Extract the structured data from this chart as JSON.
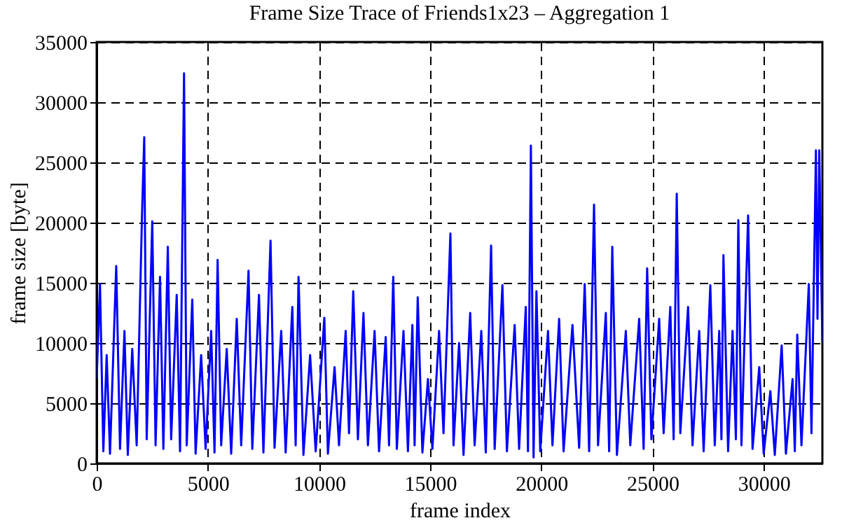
{
  "chart_data": {
    "type": "line",
    "title": "Frame Size Trace of Friends1x23 – Aggregation 1",
    "xlabel": "frame index",
    "ylabel": "frame size [byte]",
    "xlim": [
      0,
      32640
    ],
    "ylim": [
      0,
      35000
    ],
    "xticks": [
      0,
      5000,
      10000,
      15000,
      20000,
      25000,
      30000
    ],
    "yticks": [
      0,
      5000,
      10000,
      15000,
      20000,
      25000,
      30000,
      35000
    ],
    "grid": true,
    "line_style": "solid",
    "series": [
      {
        "color": "#0000ff",
        "x": [
          0,
          150,
          300,
          450,
          600,
          880,
          1050,
          1250,
          1400,
          1600,
          1800,
          2040,
          2140,
          2250,
          2500,
          2650,
          2850,
          3000,
          3200,
          3350,
          3600,
          3750,
          3930,
          4050,
          4300,
          4450,
          4700,
          4900,
          5150,
          5300,
          5440,
          5600,
          5850,
          6050,
          6300,
          6500,
          6830,
          7000,
          7300,
          7500,
          7820,
          8000,
          8300,
          8500,
          8800,
          8950,
          9080,
          9300,
          9600,
          9850,
          10240,
          10400,
          10700,
          10900,
          11200,
          11350,
          11540,
          11750,
          12000,
          12200,
          12500,
          12700,
          13000,
          13150,
          13340,
          13500,
          13800,
          14000,
          14200,
          14300,
          14440,
          14650,
          14900,
          15100,
          15400,
          15600,
          15910,
          16050,
          16300,
          16500,
          16800,
          17000,
          17300,
          17500,
          17740,
          17900,
          18250,
          18450,
          18800,
          19000,
          19300,
          19400,
          19530,
          19650,
          19780,
          19950,
          20300,
          20500,
          20800,
          21000,
          21400,
          21700,
          21950,
          22150,
          22370,
          22550,
          22900,
          23050,
          23190,
          23400,
          23800,
          24000,
          24400,
          24600,
          24760,
          24950,
          25300,
          25500,
          25800,
          25950,
          26090,
          26250,
          26600,
          26800,
          27100,
          27300,
          27600,
          27800,
          28000,
          28100,
          28190,
          28400,
          28600,
          28750,
          28860,
          29000,
          29300,
          29500,
          29800,
          30000,
          30300,
          30500,
          30810,
          31000,
          31300,
          31400,
          31510,
          31700,
          32030,
          32150,
          32350,
          32420,
          32500,
          32640
        ],
        "values": [
          7000,
          14900,
          1000,
          9000,
          800,
          16400,
          1200,
          11000,
          700,
          9500,
          1500,
          20700,
          27100,
          2000,
          20100,
          1500,
          15500,
          1200,
          18000,
          2000,
          14000,
          1000,
          32400,
          1500,
          13600,
          800,
          9000,
          1200,
          11000,
          900,
          16900,
          1500,
          9500,
          800,
          12000,
          1500,
          16000,
          1200,
          14000,
          900,
          18500,
          1300,
          11000,
          900,
          13000,
          1500,
          15500,
          700,
          9000,
          1000,
          12100,
          800,
          8000,
          1500,
          11000,
          2500,
          14300,
          2000,
          12500,
          1500,
          11000,
          1000,
          10500,
          1500,
          15500,
          1200,
          11000,
          1000,
          11500,
          1500,
          13800,
          900,
          7000,
          1200,
          11000,
          2500,
          19100,
          1500,
          10000,
          700,
          12500,
          1500,
          11000,
          900,
          18100,
          1200,
          14800,
          1000,
          11500,
          1200,
          13000,
          1000,
          26400,
          500,
          14300,
          1000,
          11000,
          1500,
          12000,
          1000,
          11500,
          1300,
          14900,
          1000,
          21500,
          1500,
          12500,
          1000,
          18000,
          700,
          11000,
          1500,
          12000,
          1200,
          16200,
          2000,
          12000,
          2500,
          13000,
          2000,
          22400,
          2500,
          13000,
          1500,
          11000,
          1000,
          14800,
          1500,
          11000,
          2000,
          17300,
          1000,
          11000,
          2000,
          20200,
          1500,
          20600,
          1200,
          8000,
          800,
          6000,
          700,
          9800,
          800,
          7000,
          1000,
          10700,
          1500,
          14900,
          2500,
          26000,
          12000,
          26000,
          10000
        ]
      }
    ]
  }
}
